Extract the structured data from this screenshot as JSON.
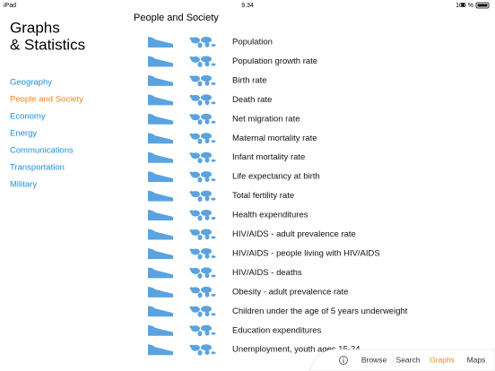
{
  "status_bar": {
    "device": "iPad",
    "time": "9.34",
    "battery": "100 %"
  },
  "sidebar": {
    "title_lines": [
      "Graphs",
      "& Statistics"
    ],
    "items": [
      "Geography",
      "People and Society",
      "Economy",
      "Energy",
      "Communications",
      "Transportation",
      "Military"
    ],
    "selected": 1
  },
  "main": {
    "heading": "People and Society",
    "rows": [
      "Population",
      "Population growth rate",
      "Birth rate",
      "Death rate",
      "Net migration rate",
      "Maternal mortality rate",
      "Infant mortality rate",
      "Life expectancy at birth",
      "Total fertility rate",
      "Health expenditures",
      "HIV/AIDS - adult prevalence rate",
      "HIV/AIDS - people living with HIV/AIDS",
      "HIV/AIDS - deaths",
      "Obesity - adult prevalence rate",
      "Children under the age of 5 years underweight",
      "Education expenditures",
      "Unemployment, youth ages 15-24"
    ]
  },
  "tab_bar": {
    "items": [
      "Browse",
      "Search",
      "Graphs",
      "Maps"
    ],
    "selected": 2
  }
}
